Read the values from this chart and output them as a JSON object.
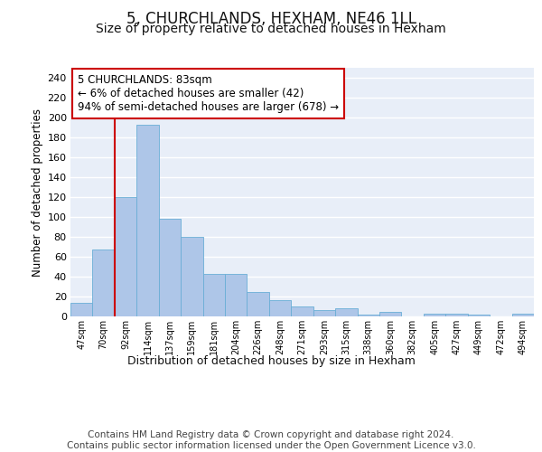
{
  "title": "5, CHURCHLANDS, HEXHAM, NE46 1LL",
  "subtitle": "Size of property relative to detached houses in Hexham",
  "xlabel": "Distribution of detached houses by size in Hexham",
  "ylabel": "Number of detached properties",
  "categories": [
    "47sqm",
    "70sqm",
    "92sqm",
    "114sqm",
    "137sqm",
    "159sqm",
    "181sqm",
    "204sqm",
    "226sqm",
    "248sqm",
    "271sqm",
    "293sqm",
    "315sqm",
    "338sqm",
    "360sqm",
    "382sqm",
    "405sqm",
    "427sqm",
    "449sqm",
    "472sqm",
    "494sqm"
  ],
  "values": [
    14,
    67,
    120,
    193,
    98,
    80,
    43,
    43,
    25,
    16,
    10,
    6,
    8,
    2,
    5,
    0,
    3,
    3,
    2,
    0,
    3
  ],
  "bar_color": "#aec6e8",
  "bar_edge_color": "#6aaed6",
  "vline_x": 1.5,
  "vline_color": "#cc0000",
  "annotation_text": "5 CHURCHLANDS: 83sqm\n← 6% of detached houses are smaller (42)\n94% of semi-detached houses are larger (678) →",
  "annotation_box_color": "#ffffff",
  "annotation_box_edgecolor": "#cc0000",
  "ylim": [
    0,
    250
  ],
  "yticks": [
    0,
    20,
    40,
    60,
    80,
    100,
    120,
    140,
    160,
    180,
    200,
    220,
    240
  ],
  "background_color": "#e8eef8",
  "grid_color": "#ffffff",
  "title_fontsize": 12,
  "subtitle_fontsize": 10,
  "footer_text": "Contains HM Land Registry data © Crown copyright and database right 2024.\nContains public sector information licensed under the Open Government Licence v3.0.",
  "footer_fontsize": 7.5
}
